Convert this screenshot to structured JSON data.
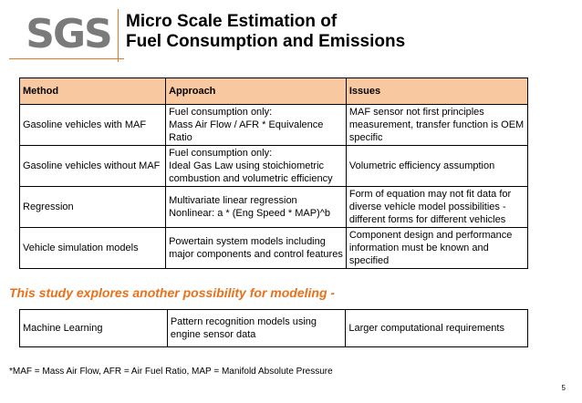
{
  "logo": "SGS",
  "title": {
    "line1": "Micro Scale Estimation of",
    "line2": "Fuel Consumption and Emissions"
  },
  "table": {
    "headers": [
      "Method",
      "Approach",
      "Issues"
    ],
    "rows": [
      {
        "method": "Gasoline vehicles with MAF",
        "approach": [
          "Fuel consumption only:",
          "Mass Air Flow / AFR * Equivalence",
          "Ratio"
        ],
        "issues": [
          "MAF sensor not first principles",
          "measurement, transfer function is OEM",
          "specific"
        ]
      },
      {
        "method": "Gasoline vehicles without MAF",
        "approach": [
          "Fuel consumption only:",
          "Ideal Gas Law using stoichiometric",
          "combustion and volumetric efficiency"
        ],
        "issues": [
          "Volumetric efficiency assumption"
        ]
      },
      {
        "method": "Regression",
        "approach": [
          "Multivariate linear regression",
          "Nonlinear: a * (Eng Speed * MAP)^b"
        ],
        "issues": [
          "Form of equation may not fit data for",
          "diverse vehicle model possibilities -",
          "different forms for different vehicles"
        ]
      },
      {
        "method": "Vehicle simulation models",
        "approach": [
          "Powertain system models including",
          "major components and control features"
        ],
        "issues": [
          "Component design and performance",
          "information must be known and",
          "specified"
        ]
      }
    ]
  },
  "subtitle": "This study explores another possibility for modeling -",
  "ml_row": {
    "method": "Machine Learning",
    "approach": [
      "Pattern recognition models using",
      "engine sensor data"
    ],
    "issues": [
      "Larger computational requirements"
    ]
  },
  "footnote": "*MAF = Mass Air Flow, AFR = Air Fuel Ratio, MAP = Manifold Absolute Pressure",
  "page_number": "5"
}
